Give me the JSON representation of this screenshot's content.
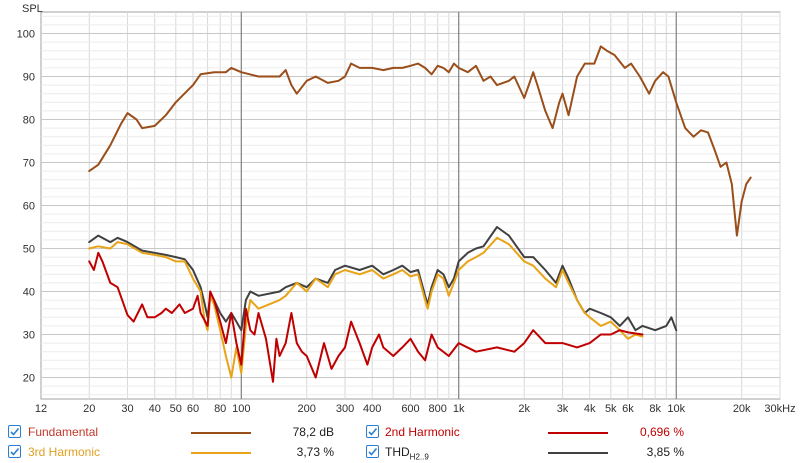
{
  "chart_data": {
    "type": "line",
    "ylabel": "SPL",
    "xscale": "log",
    "xlim": [
      12,
      30000
    ],
    "ylim": [
      15,
      105
    ],
    "y_ticks": [
      20,
      30,
      40,
      50,
      60,
      70,
      80,
      90,
      100
    ],
    "x_ticks": [
      {
        "value": 12,
        "label": "12"
      },
      {
        "value": 20,
        "label": "20"
      },
      {
        "value": 30,
        "label": "30"
      },
      {
        "value": 40,
        "label": "40"
      },
      {
        "value": 50,
        "label": "50"
      },
      {
        "value": 60,
        "label": "60"
      },
      {
        "value": 80,
        "label": "80"
      },
      {
        "value": 100,
        "label": "100"
      },
      {
        "value": 200,
        "label": "200"
      },
      {
        "value": 300,
        "label": "300"
      },
      {
        "value": 400,
        "label": "400"
      },
      {
        "value": 600,
        "label": "600"
      },
      {
        "value": 800,
        "label": "800"
      },
      {
        "value": 1000,
        "label": "1k"
      },
      {
        "value": 2000,
        "label": "2k"
      },
      {
        "value": 3000,
        "label": "3k"
      },
      {
        "value": 4000,
        "label": "4k"
      },
      {
        "value": 5000,
        "label": "5k"
      },
      {
        "value": 6000,
        "label": "6k"
      },
      {
        "value": 8000,
        "label": "8k"
      },
      {
        "value": 10000,
        "label": "10k"
      },
      {
        "value": 20000,
        "label": "20k"
      },
      {
        "value": 30000,
        "label": "30kHz"
      }
    ],
    "grid": true,
    "legend_position": "bottom",
    "series": [
      {
        "name": "Fundamental",
        "color": "#9a4e1a",
        "value_label": "78,2 dB",
        "points": [
          [
            20,
            68
          ],
          [
            22,
            69.5
          ],
          [
            25,
            74
          ],
          [
            28,
            79
          ],
          [
            30,
            81.5
          ],
          [
            33,
            80
          ],
          [
            35,
            78
          ],
          [
            40,
            78.5
          ],
          [
            45,
            81
          ],
          [
            50,
            84
          ],
          [
            60,
            88
          ],
          [
            65,
            90.5
          ],
          [
            75,
            91
          ],
          [
            85,
            91
          ],
          [
            90,
            92
          ],
          [
            100,
            91
          ],
          [
            120,
            90
          ],
          [
            150,
            90
          ],
          [
            160,
            91.5
          ],
          [
            170,
            88
          ],
          [
            180,
            86
          ],
          [
            200,
            89
          ],
          [
            220,
            90
          ],
          [
            250,
            88.5
          ],
          [
            280,
            89
          ],
          [
            300,
            90
          ],
          [
            320,
            93
          ],
          [
            350,
            92
          ],
          [
            400,
            92
          ],
          [
            450,
            91.5
          ],
          [
            500,
            92
          ],
          [
            550,
            92
          ],
          [
            600,
            92.5
          ],
          [
            650,
            93
          ],
          [
            700,
            92
          ],
          [
            750,
            90.5
          ],
          [
            800,
            92.5
          ],
          [
            850,
            92
          ],
          [
            900,
            91
          ],
          [
            950,
            93
          ],
          [
            1000,
            92
          ],
          [
            1100,
            91
          ],
          [
            1200,
            92.5
          ],
          [
            1300,
            89
          ],
          [
            1400,
            90
          ],
          [
            1500,
            88
          ],
          [
            1700,
            89
          ],
          [
            1800,
            90
          ],
          [
            2000,
            85
          ],
          [
            2100,
            88
          ],
          [
            2200,
            91
          ],
          [
            2300,
            88
          ],
          [
            2500,
            82
          ],
          [
            2700,
            78
          ],
          [
            2900,
            84
          ],
          [
            3000,
            86
          ],
          [
            3200,
            81
          ],
          [
            3500,
            90
          ],
          [
            3800,
            93
          ],
          [
            4200,
            93
          ],
          [
            4500,
            97
          ],
          [
            4800,
            96
          ],
          [
            5200,
            95
          ],
          [
            5800,
            92
          ],
          [
            6200,
            93
          ],
          [
            6800,
            90
          ],
          [
            7500,
            86
          ],
          [
            8000,
            89
          ],
          [
            8700,
            91
          ],
          [
            9200,
            90
          ],
          [
            10000,
            84
          ],
          [
            11000,
            78
          ],
          [
            12000,
            76
          ],
          [
            13000,
            77.5
          ],
          [
            14000,
            77
          ],
          [
            15000,
            73
          ],
          [
            16000,
            69
          ],
          [
            17000,
            70
          ],
          [
            18000,
            65
          ],
          [
            19000,
            53
          ],
          [
            20000,
            61
          ],
          [
            21000,
            65
          ],
          [
            22000,
            66.5
          ]
        ]
      },
      {
        "name": "2nd Harmonic",
        "color": "#c00000",
        "value_label": "0,696 %",
        "points": [
          [
            20,
            47
          ],
          [
            21,
            45
          ],
          [
            22,
            49
          ],
          [
            23,
            47
          ],
          [
            25,
            42
          ],
          [
            27,
            41
          ],
          [
            30,
            34.5
          ],
          [
            32,
            33
          ],
          [
            35,
            37
          ],
          [
            37,
            34
          ],
          [
            40,
            34
          ],
          [
            43,
            35
          ],
          [
            45,
            36
          ],
          [
            48,
            35
          ],
          [
            52,
            37
          ],
          [
            55,
            35
          ],
          [
            60,
            36
          ],
          [
            63,
            39
          ],
          [
            65,
            35
          ],
          [
            70,
            32
          ],
          [
            72,
            40
          ],
          [
            75,
            38
          ],
          [
            80,
            33
          ],
          [
            85,
            28
          ],
          [
            90,
            35
          ],
          [
            95,
            28
          ],
          [
            100,
            23
          ],
          [
            105,
            36
          ],
          [
            110,
            31
          ],
          [
            115,
            30
          ],
          [
            120,
            35
          ],
          [
            130,
            29
          ],
          [
            140,
            19
          ],
          [
            145,
            29
          ],
          [
            150,
            25
          ],
          [
            160,
            28
          ],
          [
            170,
            35
          ],
          [
            180,
            28
          ],
          [
            190,
            26
          ],
          [
            200,
            25
          ],
          [
            220,
            20
          ],
          [
            240,
            28
          ],
          [
            260,
            22
          ],
          [
            280,
            25
          ],
          [
            300,
            27
          ],
          [
            320,
            33
          ],
          [
            350,
            28
          ],
          [
            380,
            23
          ],
          [
            400,
            27
          ],
          [
            430,
            30
          ],
          [
            450,
            27
          ],
          [
            500,
            25
          ],
          [
            550,
            27
          ],
          [
            600,
            29
          ],
          [
            650,
            26
          ],
          [
            700,
            24
          ],
          [
            750,
            30
          ],
          [
            800,
            27
          ],
          [
            900,
            25
          ],
          [
            1000,
            28
          ],
          [
            1200,
            26
          ],
          [
            1500,
            27
          ],
          [
            1800,
            26
          ],
          [
            2000,
            28
          ],
          [
            2200,
            31
          ],
          [
            2500,
            28
          ],
          [
            3000,
            28
          ],
          [
            3500,
            27
          ],
          [
            4000,
            28
          ],
          [
            4500,
            30
          ],
          [
            5000,
            30
          ],
          [
            5500,
            31
          ],
          [
            6000,
            30.5
          ],
          [
            7000,
            30
          ]
        ]
      },
      {
        "name": "3rd Harmonic",
        "color": "#e8a317",
        "value_label": "3,73 %",
        "points": [
          [
            20,
            50
          ],
          [
            22,
            50.5
          ],
          [
            25,
            50
          ],
          [
            27,
            51.5
          ],
          [
            30,
            51
          ],
          [
            35,
            49
          ],
          [
            40,
            48.5
          ],
          [
            45,
            48
          ],
          [
            50,
            47
          ],
          [
            55,
            47
          ],
          [
            60,
            43
          ],
          [
            65,
            40
          ],
          [
            68,
            33
          ],
          [
            70,
            31
          ],
          [
            72,
            39
          ],
          [
            75,
            37
          ],
          [
            80,
            31
          ],
          [
            85,
            25
          ],
          [
            90,
            20
          ],
          [
            95,
            27
          ],
          [
            100,
            21
          ],
          [
            105,
            32
          ],
          [
            110,
            38
          ],
          [
            120,
            36
          ],
          [
            150,
            38
          ],
          [
            160,
            39
          ],
          [
            180,
            42
          ],
          [
            200,
            40
          ],
          [
            220,
            43
          ],
          [
            250,
            41
          ],
          [
            270,
            44
          ],
          [
            300,
            45
          ],
          [
            350,
            44
          ],
          [
            400,
            45
          ],
          [
            450,
            43
          ],
          [
            500,
            44
          ],
          [
            550,
            45
          ],
          [
            600,
            43.5
          ],
          [
            650,
            44
          ],
          [
            700,
            38
          ],
          [
            720,
            36
          ],
          [
            750,
            40
          ],
          [
            800,
            44
          ],
          [
            850,
            43
          ],
          [
            900,
            39
          ],
          [
            950,
            42
          ],
          [
            1000,
            45
          ],
          [
            1100,
            47
          ],
          [
            1200,
            48
          ],
          [
            1300,
            49
          ],
          [
            1500,
            52.5
          ],
          [
            1700,
            51
          ],
          [
            2000,
            47
          ],
          [
            2200,
            46
          ],
          [
            2500,
            43
          ],
          [
            2800,
            41
          ],
          [
            3000,
            45
          ],
          [
            3200,
            42
          ],
          [
            3500,
            38
          ],
          [
            3800,
            35
          ],
          [
            4000,
            34
          ],
          [
            4500,
            32
          ],
          [
            5000,
            33
          ],
          [
            5500,
            31
          ],
          [
            6000,
            29
          ],
          [
            6500,
            30
          ],
          [
            7000,
            29.5
          ]
        ]
      },
      {
        "name": "THD",
        "name_sub": "H2..9",
        "color": "#404040",
        "value_label": "3,85 %",
        "points": [
          [
            20,
            51.5
          ],
          [
            22,
            53
          ],
          [
            25,
            51.5
          ],
          [
            27,
            52.5
          ],
          [
            30,
            51.5
          ],
          [
            35,
            49.5
          ],
          [
            40,
            49
          ],
          [
            45,
            48.5
          ],
          [
            50,
            48
          ],
          [
            55,
            47.5
          ],
          [
            60,
            45
          ],
          [
            65,
            41
          ],
          [
            68,
            37
          ],
          [
            70,
            34
          ],
          [
            72,
            39
          ],
          [
            75,
            38
          ],
          [
            80,
            35
          ],
          [
            85,
            33
          ],
          [
            90,
            35
          ],
          [
            95,
            33
          ],
          [
            100,
            31
          ],
          [
            105,
            38
          ],
          [
            110,
            40
          ],
          [
            120,
            39
          ],
          [
            150,
            40
          ],
          [
            160,
            41
          ],
          [
            180,
            42
          ],
          [
            200,
            41
          ],
          [
            220,
            43
          ],
          [
            250,
            42
          ],
          [
            270,
            45
          ],
          [
            300,
            46
          ],
          [
            350,
            45
          ],
          [
            400,
            46
          ],
          [
            450,
            44
          ],
          [
            500,
            45
          ],
          [
            550,
            46
          ],
          [
            600,
            44.5
          ],
          [
            650,
            45
          ],
          [
            700,
            39
          ],
          [
            720,
            37
          ],
          [
            750,
            41
          ],
          [
            800,
            45
          ],
          [
            850,
            44
          ],
          [
            900,
            41
          ],
          [
            950,
            43
          ],
          [
            1000,
            47
          ],
          [
            1100,
            49
          ],
          [
            1200,
            50
          ],
          [
            1300,
            50.5
          ],
          [
            1500,
            55
          ],
          [
            1700,
            53
          ],
          [
            2000,
            48
          ],
          [
            2200,
            48
          ],
          [
            2500,
            45
          ],
          [
            2800,
            42
          ],
          [
            3000,
            46
          ],
          [
            3200,
            43
          ],
          [
            3500,
            38
          ],
          [
            3800,
            35
          ],
          [
            4000,
            36
          ],
          [
            4500,
            35
          ],
          [
            5000,
            34
          ],
          [
            5500,
            32
          ],
          [
            6000,
            34
          ],
          [
            6500,
            31
          ],
          [
            7000,
            32
          ],
          [
            8000,
            31
          ],
          [
            9000,
            32
          ],
          [
            9500,
            34
          ],
          [
            10000,
            31
          ]
        ]
      }
    ]
  }
}
